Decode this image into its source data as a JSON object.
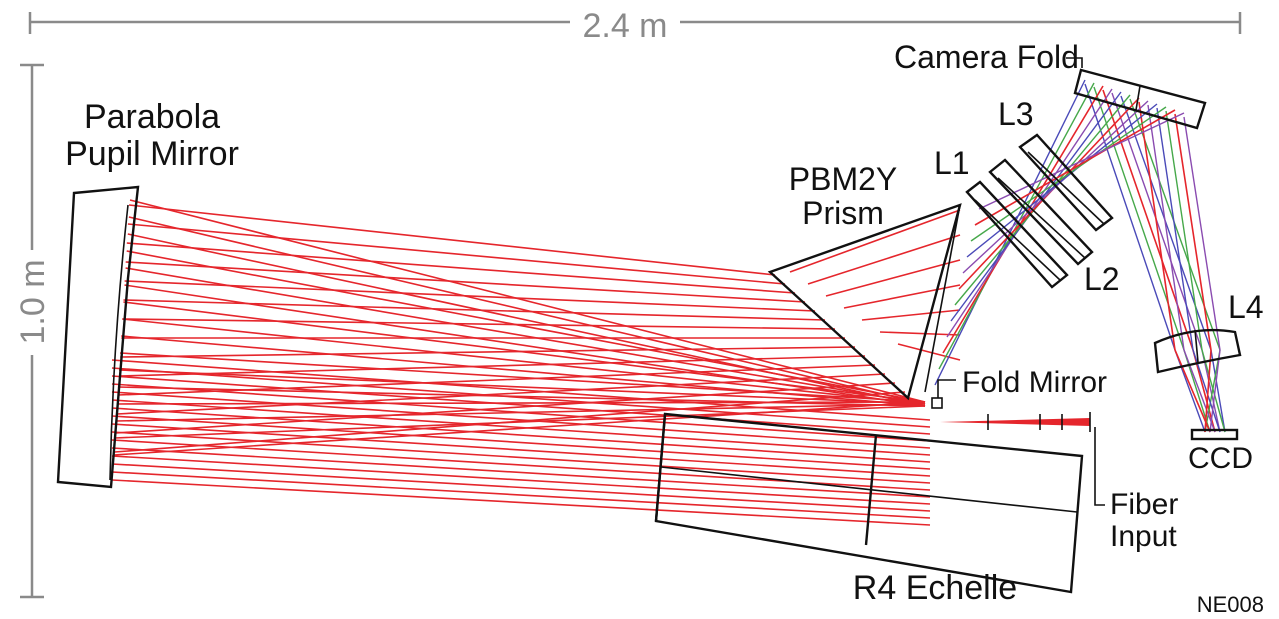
{
  "dimensions": {
    "width_label": "2.4 m",
    "height_label": "1.0 m"
  },
  "labels": {
    "parabola_line1": "Parabola",
    "parabola_line2": "Pupil Mirror",
    "prism_line1": "PBM2Y",
    "prism_line2": "Prism",
    "camera_fold": "Camera Fold",
    "l1": "L1",
    "l2": "L2",
    "l3": "L3",
    "l4": "L4",
    "fold_mirror": "Fold Mirror",
    "fiber_line1": "Fiber",
    "fiber_line2": "Input",
    "echelle": "R4 Echelle",
    "ccd": "CCD",
    "figure_id": "NE008"
  },
  "colors": {
    "ray_primary": "#e5262c",
    "ray_blue": "#4a4ab8",
    "ray_green": "#46a84a",
    "ray_purple": "#8a4bb0",
    "optics": "#111111",
    "dimension": "#8a8a8a"
  }
}
